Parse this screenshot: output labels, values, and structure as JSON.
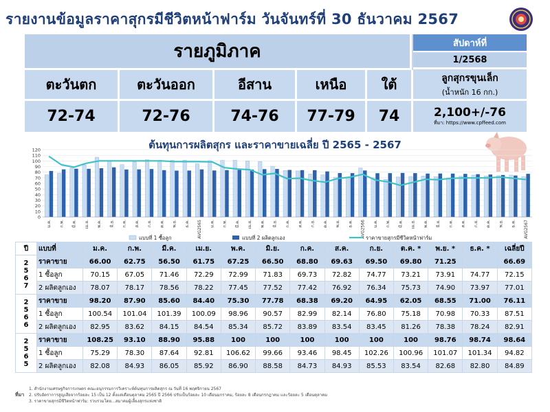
{
  "header": {
    "title": "รายงานข้อมูลราคาสุกรมีชีวิตหน้าฟาร์ม วันจันทร์ที่ 30 ธันวาคม 2567"
  },
  "regional": {
    "heading": "รายภูมิภาค",
    "week_label": "สัปดาห์ที่",
    "week_value": "1/2568",
    "regions": [
      {
        "name": "ตะวันตก",
        "price": "72-74"
      },
      {
        "name": "ตะวันออก",
        "price": "72-76"
      },
      {
        "name": "อีสาน",
        "price": "74-76"
      },
      {
        "name": "เหนือ",
        "price": "77-79"
      },
      {
        "name": "ใต้",
        "price": "74"
      }
    ],
    "piglet_label": "ลูกสุกรขุนเล็ก",
    "piglet_sub": "(น้ำหนัก 16 กก.)",
    "piglet_price": "2,100+/-76",
    "piglet_source": "ที่มา: https://www.cpffeed.com"
  },
  "chart_data": {
    "type": "bar",
    "title": "ต้นทุนการผลิตสุกร และราคาขายเฉลี่ย ปี 2565 - 2567",
    "ylim": [
      0,
      120
    ],
    "yticks": [
      0,
      10,
      20,
      30,
      40,
      50,
      60,
      70,
      80,
      90,
      100,
      110,
      120
    ],
    "categories": [
      "ม.ค.",
      "ก.พ.",
      "มี.ค.",
      "เม.ย.",
      "พ.ค.",
      "มิ.ย.",
      "ก.ค.",
      "ส.ค.",
      "ก.ย.",
      "ต.ค.",
      "พ.ย.",
      "ธ.ค.",
      "AVG2565",
      "ม.ค.",
      "ก.พ.",
      "มี.ค.",
      "เม.ย.",
      "พ.ค.",
      "มิ.ย.",
      "ก.ค.",
      "ส.ค.",
      "ก.ย.",
      "ต.ค.",
      "พ.ย.",
      "ธ.ค.",
      "AVG2566",
      "ม.ค.",
      "ก.พ.",
      "มี.ค.",
      "เม.ย.",
      "พ.ค.",
      "มิ.ย.",
      "ก.ค.",
      "ส.ค.",
      "ก.ย.",
      "ต.ค.",
      "พ.ย.",
      "ธ.ค.",
      "AVG2567"
    ],
    "series": [
      {
        "name": "แบบที่ 1 ซื้อลูก",
        "type": "bar",
        "color": "#c9def2",
        "values": [
          75.29,
          78.3,
          87.64,
          92.81,
          106.62,
          99.66,
          93.46,
          98.45,
          102.26,
          100.96,
          101.07,
          101.34,
          94.82,
          100.54,
          101.04,
          101.39,
          100.09,
          98.96,
          90.57,
          82.99,
          82.14,
          76.8,
          75.18,
          70.98,
          70.33,
          87.51,
          70.15,
          67.05,
          71.46,
          72.29,
          72.99,
          71.83,
          69.73,
          72.82,
          74.77,
          73.21,
          73.91,
          74.77,
          72.15
        ]
      },
      {
        "name": "แบบที่ 2 ผลิตลูกเอง",
        "type": "bar",
        "color": "#2f62ad",
        "values": [
          82.08,
          84.93,
          86.05,
          85.92,
          86.9,
          88.58,
          84.73,
          84.93,
          85.53,
          83.54,
          82.68,
          82.8,
          84.89,
          82.95,
          83.62,
          84.15,
          84.54,
          85.34,
          85.72,
          83.89,
          83.54,
          83.45,
          81.26,
          78.38,
          78.24,
          82.91,
          78.07,
          78.17,
          78.56,
          78.22,
          77.45,
          77.52,
          77.42,
          76.92,
          76.34,
          75.73,
          74.9,
          73.97,
          77.01
        ]
      },
      {
        "name": "ราคาขายสุกรมีชีวิตหน้าฟาร์ม",
        "type": "line",
        "color": "#3ec1c9",
        "values": [
          108.25,
          93.1,
          88.9,
          95.88,
          100,
          100,
          100,
          100,
          100,
          100,
          98.76,
          98.74,
          98.64,
          98.2,
          87.9,
          85.6,
          84.4,
          75.3,
          77.78,
          68.38,
          69.2,
          64.95,
          62.05,
          68.55,
          71,
          76.11,
          66,
          62.75,
          56.5,
          61.75,
          67.25,
          66.5,
          68.8,
          69.63,
          69.5,
          69.8,
          71.25,
          null,
          66.69
        ]
      }
    ]
  },
  "table": {
    "headers": [
      "ปี",
      "แบบที่",
      "ม.ค.",
      "ก.พ.",
      "มี.ค.",
      "เม.ย.",
      "พ.ค.",
      "มิ.ย.",
      "ก.ค.",
      "ส.ค.",
      "ก.ย.",
      "ต.ค. *",
      "พ.ย. *",
      "ธ.ค. *",
      "เฉลี่ยปี"
    ],
    "groups": [
      {
        "year": "2567",
        "rows": [
          {
            "label": "ราคาขาย",
            "cells": [
              "66.00",
              "62.75",
              "56.50",
              "61.75",
              "67.25",
              "66.50",
              "68.80",
              "69.63",
              "69.50",
              "69.80",
              "71.25",
              "",
              "66.69"
            ]
          },
          {
            "label": "1 ซื้อลูก",
            "cells": [
              "70.15",
              "67.05",
              "71.46",
              "72.29",
              "72.99",
              "71.83",
              "69.73",
              "72.82",
              "74.77",
              "73.21",
              "73.91",
              "74.77",
              "72.15"
            ]
          },
          {
            "label": "2 ผลิตลูกเอง",
            "cells": [
              "78.07",
              "78.17",
              "78.56",
              "78.22",
              "77.45",
              "77.52",
              "77.42",
              "76.92",
              "76.34",
              "75.73",
              "74.90",
              "73.97",
              "77.01"
            ]
          }
        ]
      },
      {
        "year": "2566",
        "rows": [
          {
            "label": "ราคาขาย",
            "cells": [
              "98.20",
              "87.90",
              "85.60",
              "84.40",
              "75.30",
              "77.78",
              "68.38",
              "69.20",
              "64.95",
              "62.05",
              "68.55",
              "71.00",
              "76.11"
            ]
          },
          {
            "label": "1 ซื้อลูก",
            "cells": [
              "100.54",
              "101.04",
              "101.39",
              "100.09",
              "98.96",
              "90.57",
              "82.99",
              "82.14",
              "76.80",
              "75.18",
              "70.98",
              "70.33",
              "87.51"
            ]
          },
          {
            "label": "2 ผลิตลูกเอง",
            "cells": [
              "82.95",
              "83.62",
              "84.15",
              "84.54",
              "85.34",
              "85.72",
              "83.89",
              "83.54",
              "83.45",
              "81.26",
              "78.38",
              "78.24",
              "82.91"
            ]
          }
        ]
      },
      {
        "year": "2565",
        "rows": [
          {
            "label": "ราคาขาย",
            "cells": [
              "108.25",
              "93.10",
              "88.90",
              "95.88",
              "100",
              "100",
              "100",
              "100",
              "100",
              "100",
              "98.76",
              "98.74",
              "98.64"
            ]
          },
          {
            "label": "1 ซื้อลูก",
            "cells": [
              "75.29",
              "78.30",
              "87.64",
              "92.81",
              "106.62",
              "99.66",
              "93.46",
              "98.45",
              "102.26",
              "100.96",
              "101.07",
              "101.34",
              "94.82"
            ]
          },
          {
            "label": "2 ผลิตลูกเอง",
            "cells": [
              "82.08",
              "84.93",
              "86.05",
              "85.92",
              "86.90",
              "88.58",
              "84.73",
              "84.93",
              "85.53",
              "83.54",
              "82.68",
              "82.80",
              "84.89"
            ]
          }
        ]
      }
    ]
  },
  "notes": {
    "label": "ที่มา",
    "lines": [
      "1. สำนักงานเศรษฐกิจการเกษตร คณะอนุกรรมการวิเคราะห์ต้นทุนการผลิตสุกร ณ วันที่ 16 พฤศจิกายน 2567",
      "2. ปรับอัตราการสูญเสียจากร้อยละ 15 เป็น 12 ตั้งแต่เดือนตุลาคม 2565 ปี 2566 ปรับเป็นร้อยละ 10 เดือนมกราคม, ร้อยละ 8 เดือนกรกฎาคม และร้อยละ 5 เดือนตุลาคม",
      "3. ราคาขายสุกรมีชีวิตหน้าฟาร์ม: รวบรวมโดย...สมาคมผู้เลี้ยงสุกรแห่งชาติ"
    ]
  }
}
